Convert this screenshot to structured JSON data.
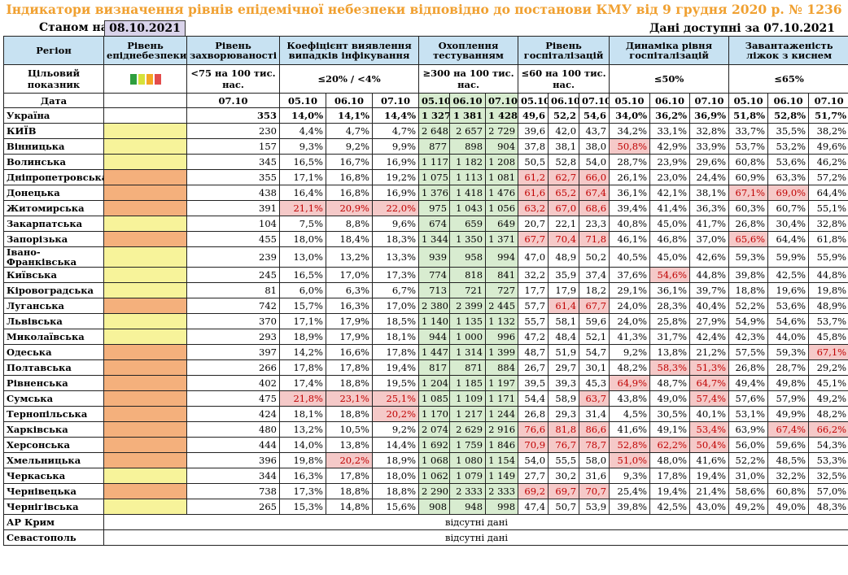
{
  "title": "Індикатори визначення рівнів епідемічної небезпеки відповідно до постанови КМУ від 9 грудня 2020 р. № 1236",
  "as_of_label": "Станом на",
  "as_of_date": "08.10.2021",
  "data_available": "Дані доступні за  07.10.2021",
  "headers": {
    "region": "Регіон",
    "level": "Рівень епіднебезпеки",
    "incidence": "Рівень захворюваності",
    "detection": "Коефіцієнт виявлення випадків інфікування",
    "testing": "Охоплення тестуванням",
    "hosp": "Рівень госпіталізацій",
    "dyn": "Динаміка рівня госпіталізацій",
    "oxygen": "Завантаженість ліжок з киснем"
  },
  "target_row": {
    "label": "Цільовий показник",
    "incidence": "<75 на 100 тис. нас.",
    "detection": "≤20% / <4%",
    "testing": "≥300 на 100 тис. нас.",
    "hosp": "≤60 на 100 тис. нас.",
    "dyn": "≤50%",
    "oxygen": "≤65%",
    "level_colors": [
      "#2e9e3e",
      "#d6e23a",
      "#f5a623",
      "#e34c4c"
    ]
  },
  "date_row": {
    "label": "Дата",
    "incidence": "07.10",
    "d1": "05.10",
    "d2": "06.10",
    "d3": "07.10"
  },
  "colors": {
    "header": "#c8e2f2",
    "yellow": "#f7f39a",
    "orange": "#f4b07c",
    "red_bg": "#f5c9c8",
    "red_text": "#c00000",
    "testing_bg": "#d8ecd0",
    "title": "#f0a030"
  },
  "rows": [
    {
      "region": "Україна",
      "level": "none",
      "inc": "353",
      "det": [
        "14,0%",
        "14,1%",
        "14,4%"
      ],
      "tst": [
        "1 327",
        "1 381",
        "1 428"
      ],
      "hosp": [
        "49,6",
        "52,2",
        "54,6"
      ],
      "dyn": [
        "34,0%",
        "36,2%",
        "36,9%"
      ],
      "oxy": [
        "51,8%",
        "52,8%",
        "51,7%"
      ],
      "red": []
    },
    {
      "region": "КИЇВ",
      "level": "yellow",
      "inc": "230",
      "det": [
        "4,4%",
        "4,7%",
        "4,7%"
      ],
      "tst": [
        "2 648",
        "2 657",
        "2 729"
      ],
      "hosp": [
        "39,6",
        "42,0",
        "43,7"
      ],
      "dyn": [
        "34,2%",
        "33,1%",
        "32,8%"
      ],
      "oxy": [
        "33,7%",
        "35,5%",
        "38,2%"
      ],
      "red": []
    },
    {
      "region": "Вінницька",
      "level": "yellow",
      "inc": "157",
      "det": [
        "9,3%",
        "9,2%",
        "9,9%"
      ],
      "tst": [
        "877",
        "898",
        "904"
      ],
      "hosp": [
        "37,8",
        "38,1",
        "38,0"
      ],
      "dyn": [
        "50,8%",
        "42,9%",
        "33,9%"
      ],
      "oxy": [
        "53,7%",
        "53,2%",
        "49,6%"
      ],
      "red": [
        "dyn0"
      ]
    },
    {
      "region": "Волинська",
      "level": "yellow",
      "inc": "345",
      "det": [
        "16,5%",
        "16,7%",
        "16,9%"
      ],
      "tst": [
        "1 117",
        "1 182",
        "1 208"
      ],
      "hosp": [
        "50,5",
        "52,8",
        "54,0"
      ],
      "dyn": [
        "28,7%",
        "23,9%",
        "29,6%"
      ],
      "oxy": [
        "60,8%",
        "53,6%",
        "46,2%"
      ],
      "red": []
    },
    {
      "region": "Дніпропетровська",
      "level": "orange",
      "inc": "355",
      "det": [
        "17,1%",
        "16,8%",
        "19,2%"
      ],
      "tst": [
        "1 075",
        "1 113",
        "1 081"
      ],
      "hosp": [
        "61,2",
        "62,7",
        "66,0"
      ],
      "dyn": [
        "26,1%",
        "23,0%",
        "24,4%"
      ],
      "oxy": [
        "60,9%",
        "63,3%",
        "57,2%"
      ],
      "red": [
        "hosp0",
        "hosp1",
        "hosp2"
      ]
    },
    {
      "region": "Донецька",
      "level": "orange",
      "inc": "438",
      "det": [
        "16,4%",
        "16,8%",
        "16,9%"
      ],
      "tst": [
        "1 376",
        "1 418",
        "1 476"
      ],
      "hosp": [
        "61,6",
        "65,2",
        "67,4"
      ],
      "dyn": [
        "36,1%",
        "42,1%",
        "38,1%"
      ],
      "oxy": [
        "67,1%",
        "69,0%",
        "64,4%"
      ],
      "red": [
        "hosp0",
        "hosp1",
        "hosp2",
        "oxy0",
        "oxy1"
      ]
    },
    {
      "region": "Житомирська",
      "level": "orange",
      "inc": "391",
      "det": [
        "21,1%",
        "20,9%",
        "22,0%"
      ],
      "tst": [
        "975",
        "1 043",
        "1 056"
      ],
      "hosp": [
        "63,2",
        "67,0",
        "68,6"
      ],
      "dyn": [
        "39,4%",
        "41,4%",
        "36,3%"
      ],
      "oxy": [
        "60,3%",
        "60,7%",
        "55,1%"
      ],
      "red": [
        "det0",
        "det1",
        "det2",
        "hosp0",
        "hosp1",
        "hosp2"
      ]
    },
    {
      "region": "Закарпатська",
      "level": "yellow",
      "inc": "104",
      "det": [
        "7,5%",
        "8,8%",
        "9,6%"
      ],
      "tst": [
        "674",
        "659",
        "649"
      ],
      "hosp": [
        "20,7",
        "22,1",
        "23,3"
      ],
      "dyn": [
        "40,8%",
        "45,0%",
        "41,7%"
      ],
      "oxy": [
        "26,8%",
        "30,4%",
        "32,8%"
      ],
      "red": []
    },
    {
      "region": "Запорізька",
      "level": "orange",
      "inc": "455",
      "det": [
        "18,0%",
        "18,4%",
        "18,3%"
      ],
      "tst": [
        "1 344",
        "1 350",
        "1 371"
      ],
      "hosp": [
        "67,7",
        "70,4",
        "71,8"
      ],
      "dyn": [
        "46,1%",
        "46,8%",
        "37,0%"
      ],
      "oxy": [
        "65,6%",
        "64,4%",
        "61,8%"
      ],
      "red": [
        "hosp0",
        "hosp1",
        "hosp2",
        "oxy0"
      ]
    },
    {
      "region": "Івано-Франківська",
      "level": "yellow",
      "inc": "239",
      "det": [
        "13,0%",
        "13,2%",
        "13,3%"
      ],
      "tst": [
        "939",
        "958",
        "994"
      ],
      "hosp": [
        "47,0",
        "48,9",
        "50,2"
      ],
      "dyn": [
        "40,5%",
        "45,0%",
        "42,6%"
      ],
      "oxy": [
        "59,3%",
        "59,9%",
        "55,9%"
      ],
      "red": []
    },
    {
      "region": "Київська",
      "level": "yellow",
      "inc": "245",
      "det": [
        "16,5%",
        "17,0%",
        "17,3%"
      ],
      "tst": [
        "774",
        "818",
        "841"
      ],
      "hosp": [
        "32,2",
        "35,9",
        "37,4"
      ],
      "dyn": [
        "37,6%",
        "54,6%",
        "44,8%"
      ],
      "oxy": [
        "39,8%",
        "42,5%",
        "44,8%"
      ],
      "red": [
        "dyn1"
      ]
    },
    {
      "region": "Кіровоградська",
      "level": "yellow",
      "inc": "81",
      "det": [
        "6,0%",
        "6,3%",
        "6,7%"
      ],
      "tst": [
        "713",
        "721",
        "727"
      ],
      "hosp": [
        "17,7",
        "17,9",
        "18,2"
      ],
      "dyn": [
        "29,1%",
        "36,1%",
        "39,7%"
      ],
      "oxy": [
        "18,8%",
        "19,6%",
        "19,8%"
      ],
      "red": []
    },
    {
      "region": "Луганська",
      "level": "orange",
      "inc": "742",
      "det": [
        "15,7%",
        "16,3%",
        "17,0%"
      ],
      "tst": [
        "2 380",
        "2 399",
        "2 445"
      ],
      "hosp": [
        "57,7",
        "61,4",
        "67,7"
      ],
      "dyn": [
        "24,0%",
        "28,3%",
        "40,4%"
      ],
      "oxy": [
        "52,2%",
        "53,6%",
        "48,9%"
      ],
      "red": [
        "hosp1",
        "hosp2"
      ]
    },
    {
      "region": "Львівська",
      "level": "yellow",
      "inc": "370",
      "det": [
        "17,1%",
        "17,9%",
        "18,5%"
      ],
      "tst": [
        "1 140",
        "1 135",
        "1 132"
      ],
      "hosp": [
        "55,7",
        "58,1",
        "59,6"
      ],
      "dyn": [
        "24,0%",
        "25,8%",
        "27,9%"
      ],
      "oxy": [
        "54,9%",
        "54,6%",
        "53,7%"
      ],
      "red": []
    },
    {
      "region": "Миколаївська",
      "level": "yellow",
      "inc": "293",
      "det": [
        "18,9%",
        "17,9%",
        "18,1%"
      ],
      "tst": [
        "944",
        "1 000",
        "996"
      ],
      "hosp": [
        "47,2",
        "48,4",
        "52,1"
      ],
      "dyn": [
        "41,3%",
        "31,7%",
        "42,4%"
      ],
      "oxy": [
        "42,3%",
        "44,0%",
        "45,8%"
      ],
      "red": []
    },
    {
      "region": "Одеська",
      "level": "orange",
      "inc": "397",
      "det": [
        "14,2%",
        "16,6%",
        "17,8%"
      ],
      "tst": [
        "1 447",
        "1 314",
        "1 399"
      ],
      "hosp": [
        "48,7",
        "51,9",
        "54,7"
      ],
      "dyn": [
        "9,2%",
        "13,8%",
        "21,2%"
      ],
      "oxy": [
        "57,5%",
        "59,3%",
        "67,1%"
      ],
      "red": [
        "oxy2"
      ]
    },
    {
      "region": "Полтавська",
      "level": "orange",
      "inc": "266",
      "det": [
        "17,8%",
        "17,8%",
        "19,4%"
      ],
      "tst": [
        "817",
        "871",
        "884"
      ],
      "hosp": [
        "26,7",
        "29,7",
        "30,1"
      ],
      "dyn": [
        "48,2%",
        "58,3%",
        "51,3%"
      ],
      "oxy": [
        "26,8%",
        "28,7%",
        "29,2%"
      ],
      "red": [
        "dyn1",
        "dyn2"
      ]
    },
    {
      "region": "Рівненська",
      "level": "orange",
      "inc": "402",
      "det": [
        "17,4%",
        "18,8%",
        "19,5%"
      ],
      "tst": [
        "1 204",
        "1 185",
        "1 197"
      ],
      "hosp": [
        "39,5",
        "39,3",
        "45,3"
      ],
      "dyn": [
        "64,9%",
        "48,7%",
        "64,7%"
      ],
      "oxy": [
        "49,4%",
        "49,8%",
        "45,1%"
      ],
      "red": [
        "dyn0",
        "dyn2"
      ]
    },
    {
      "region": "Сумська",
      "level": "orange",
      "inc": "475",
      "det": [
        "21,8%",
        "23,1%",
        "25,1%"
      ],
      "tst": [
        "1 085",
        "1 109",
        "1 171"
      ],
      "hosp": [
        "54,4",
        "58,9",
        "63,7"
      ],
      "dyn": [
        "43,8%",
        "49,0%",
        "57,4%"
      ],
      "oxy": [
        "57,6%",
        "57,9%",
        "49,2%"
      ],
      "red": [
        "det0",
        "det1",
        "det2",
        "hosp2",
        "dyn2"
      ]
    },
    {
      "region": "Тернопільська",
      "level": "orange",
      "inc": "424",
      "det": [
        "18,1%",
        "18,8%",
        "20,2%"
      ],
      "tst": [
        "1 170",
        "1 217",
        "1 244"
      ],
      "hosp": [
        "26,8",
        "29,3",
        "31,4"
      ],
      "dyn": [
        "4,5%",
        "30,5%",
        "40,1%"
      ],
      "oxy": [
        "53,1%",
        "49,9%",
        "48,2%"
      ],
      "red": [
        "det2"
      ]
    },
    {
      "region": "Харківська",
      "level": "orange",
      "inc": "480",
      "det": [
        "13,2%",
        "10,5%",
        "9,2%"
      ],
      "tst": [
        "2 074",
        "2 629",
        "2 916"
      ],
      "hosp": [
        "76,6",
        "81,8",
        "86,6"
      ],
      "dyn": [
        "41,6%",
        "49,1%",
        "53,4%"
      ],
      "oxy": [
        "63,9%",
        "67,4%",
        "66,2%"
      ],
      "red": [
        "hosp0",
        "hosp1",
        "hosp2",
        "dyn2",
        "oxy1",
        "oxy2"
      ]
    },
    {
      "region": "Херсонська",
      "level": "orange",
      "inc": "444",
      "det": [
        "14,0%",
        "13,8%",
        "14,4%"
      ],
      "tst": [
        "1 692",
        "1 759",
        "1 846"
      ],
      "hosp": [
        "70,9",
        "76,7",
        "78,7"
      ],
      "dyn": [
        "52,8%",
        "62,2%",
        "50,4%"
      ],
      "oxy": [
        "56,0%",
        "59,6%",
        "54,3%"
      ],
      "red": [
        "hosp0",
        "hosp1",
        "hosp2",
        "dyn0",
        "dyn1",
        "dyn2"
      ]
    },
    {
      "region": "Хмельницька",
      "level": "orange",
      "inc": "396",
      "det": [
        "19,8%",
        "20,2%",
        "18,9%"
      ],
      "tst": [
        "1 068",
        "1 080",
        "1 154"
      ],
      "hosp": [
        "54,0",
        "55,5",
        "58,0"
      ],
      "dyn": [
        "51,0%",
        "48,0%",
        "41,6%"
      ],
      "oxy": [
        "52,2%",
        "48,5%",
        "53,3%"
      ],
      "red": [
        "det1",
        "dyn0"
      ]
    },
    {
      "region": "Черкаська",
      "level": "yellow",
      "inc": "344",
      "det": [
        "16,3%",
        "17,8%",
        "18,0%"
      ],
      "tst": [
        "1 062",
        "1 079",
        "1 149"
      ],
      "hosp": [
        "27,7",
        "30,2",
        "31,6"
      ],
      "dyn": [
        "9,3%",
        "17,8%",
        "19,4%"
      ],
      "oxy": [
        "31,0%",
        "32,2%",
        "32,5%"
      ],
      "red": []
    },
    {
      "region": "Чернівецька",
      "level": "orange",
      "inc": "738",
      "det": [
        "17,3%",
        "18,8%",
        "18,8%"
      ],
      "tst": [
        "2 290",
        "2 333",
        "2 333"
      ],
      "hosp": [
        "69,2",
        "69,7",
        "70,7"
      ],
      "dyn": [
        "25,4%",
        "19,4%",
        "21,4%"
      ],
      "oxy": [
        "58,6%",
        "60,8%",
        "57,0%"
      ],
      "red": [
        "hosp0",
        "hosp1",
        "hosp2"
      ]
    },
    {
      "region": "Чернігівська",
      "level": "yellow",
      "inc": "265",
      "det": [
        "15,3%",
        "14,8%",
        "15,6%"
      ],
      "tst": [
        "908",
        "948",
        "998"
      ],
      "hosp": [
        "47,4",
        "50,7",
        "53,9"
      ],
      "dyn": [
        "39,8%",
        "42,5%",
        "43,0%"
      ],
      "oxy": [
        "49,2%",
        "49,0%",
        "48,3%"
      ],
      "red": []
    }
  ],
  "na_rows": [
    {
      "region": "АР Крим",
      "text": "відсутні дані"
    },
    {
      "region": "Севастополь",
      "text": "відсутні дані"
    }
  ]
}
